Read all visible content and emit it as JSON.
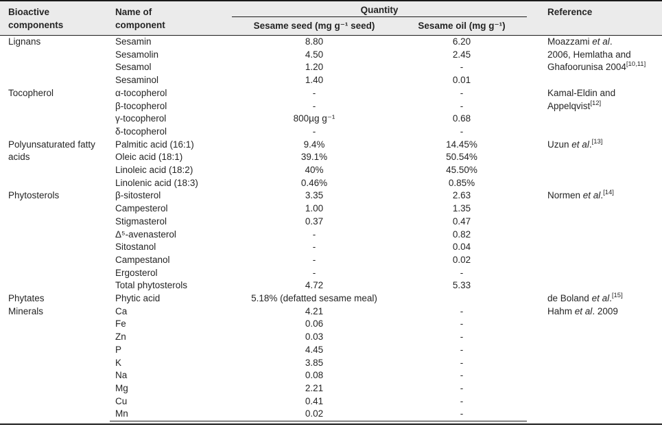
{
  "colors": {
    "header-bg": "#ebebeb",
    "rule": "#1a1a1a",
    "text": "#242424"
  },
  "table": {
    "header": {
      "bioactive": "Bioactive components",
      "component": "Name of component",
      "quantity": "Quantity",
      "seed": "Sesame seed (mg g⁻¹ seed)",
      "oil": "Sesame oil (mg g⁻¹)",
      "reference": "Reference"
    },
    "groups": [
      {
        "label": "Lignans",
        "reference": [
          {
            "text": "Moazzami "
          },
          {
            "text": "et al",
            "italic": true
          },
          {
            "text": ".\n2006, Hemlatha and Ghafoorunisa 2004"
          },
          {
            "text": "[10,11]",
            "sup": true
          }
        ],
        "rows": [
          {
            "component": "Sesamin",
            "seed": "8.80",
            "oil": "6.20"
          },
          {
            "component": "Sesamolin",
            "seed": "4.50",
            "oil": "2.45"
          },
          {
            "component": "Sesamol",
            "seed": "1.20",
            "oil": "-"
          },
          {
            "component": "Sesaminol",
            "seed": "1.40",
            "oil": "0.01"
          }
        ]
      },
      {
        "label": "Tocopherol",
        "reference": [
          {
            "text": "Kamal-Eldin and Appelqvist"
          },
          {
            "text": "[12]",
            "sup": true
          }
        ],
        "rows": [
          {
            "component": "α-tocopherol",
            "seed": "-",
            "oil": "-"
          },
          {
            "component": "β-tocopherol",
            "seed": "-",
            "oil": "-"
          },
          {
            "component": "γ-tocopherol",
            "seed": "800µg g⁻¹",
            "oil": "0.68"
          },
          {
            "component": "δ-tocopherol",
            "seed": "-",
            "oil": "-"
          }
        ]
      },
      {
        "label": "Polyunsaturated fatty acids",
        "reference": [
          {
            "text": "Uzun "
          },
          {
            "text": "et al",
            "italic": true
          },
          {
            "text": "."
          },
          {
            "text": "[13]",
            "sup": true
          }
        ],
        "rows": [
          {
            "component": "Palmitic acid (16:1)",
            "seed": "9.4%",
            "oil": "14.45%"
          },
          {
            "component": "Oleic acid (18:1)",
            "seed": "39.1%",
            "oil": "50.54%"
          },
          {
            "component": "Linoleic acid (18:2)",
            "seed": "40%",
            "oil": "45.50%"
          },
          {
            "component": "Linolenic acid (18:3)",
            "seed": "0.46%",
            "oil": "0.85%"
          }
        ]
      },
      {
        "label": "Phytosterols",
        "reference": [
          {
            "text": "Normen "
          },
          {
            "text": "et al",
            "italic": true
          },
          {
            "text": "."
          },
          {
            "text": "[14]",
            "sup": true
          }
        ],
        "rows": [
          {
            "component": "β-sitosterol",
            "seed": "3.35",
            "oil": "2.63"
          },
          {
            "component": "Campesterol",
            "seed": "1.00",
            "oil": "1.35"
          },
          {
            "component": "Stigmasterol",
            "seed": "0.37",
            "oil": "0.47"
          },
          {
            "component": "Δ⁵-avenasterol",
            "seed": "-",
            "oil": "0.82"
          },
          {
            "component": "Sitostanol",
            "seed": "-",
            "oil": "0.04"
          },
          {
            "component": "Campestanol",
            "seed": "-",
            "oil": "0.02"
          },
          {
            "component": "Ergosterol",
            "seed": "-",
            "oil": "-"
          },
          {
            "component": "Total phytosterols",
            "seed": "4.72",
            "oil": "5.33"
          }
        ]
      },
      {
        "label": "Phytates",
        "reference": [
          {
            "text": "de Boland "
          },
          {
            "text": "et al",
            "italic": true
          },
          {
            "text": "."
          },
          {
            "text": "[15]",
            "sup": true
          }
        ],
        "rows": [
          {
            "component": "Phytic acid",
            "seed": "5.18% (defatted sesame meal)",
            "oil": ""
          }
        ]
      },
      {
        "label": "Minerals",
        "reference": [
          {
            "text": "Hahm "
          },
          {
            "text": "et al",
            "italic": true
          },
          {
            "text": ". 2009"
          }
        ],
        "rows": [
          {
            "component": "Ca",
            "seed": "4.21",
            "oil": "-"
          },
          {
            "component": "Fe",
            "seed": "0.06",
            "oil": "-"
          },
          {
            "component": "Zn",
            "seed": "0.03",
            "oil": "-"
          },
          {
            "component": "P",
            "seed": "4.45",
            "oil": "-"
          },
          {
            "component": "K",
            "seed": "3.85",
            "oil": "-"
          },
          {
            "component": "Na",
            "seed": "0.08",
            "oil": "-"
          },
          {
            "component": "Mg",
            "seed": "2.21",
            "oil": "-"
          },
          {
            "component": "Cu",
            "seed": "0.41",
            "oil": "-"
          },
          {
            "component": "Mn",
            "seed": "0.02",
            "oil": "-"
          }
        ]
      }
    ]
  }
}
